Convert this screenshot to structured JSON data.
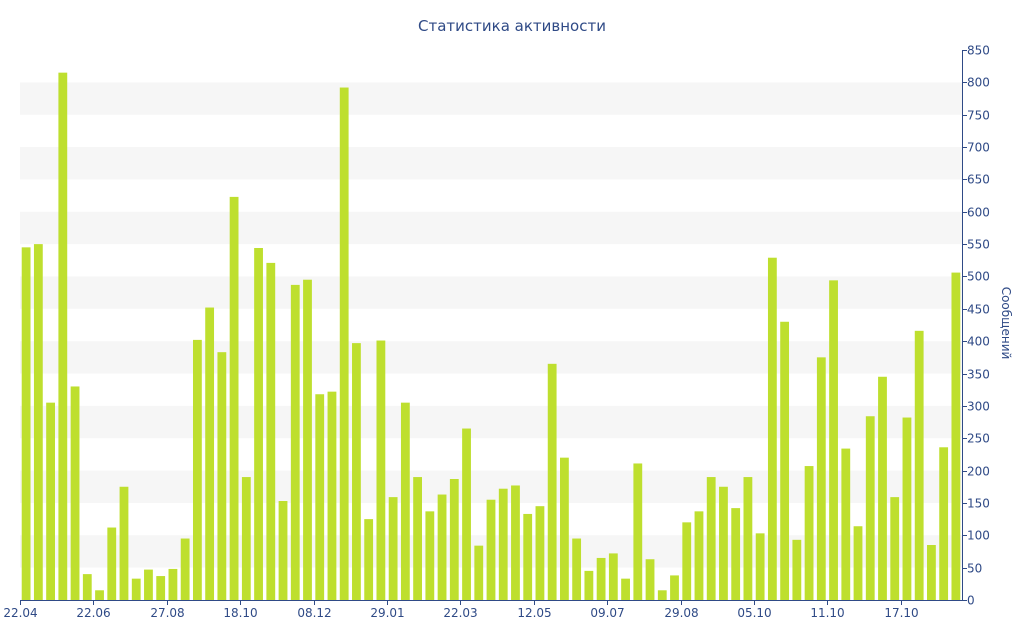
{
  "colors": {
    "bar": "#bedf2e",
    "band": "#f6f6f6",
    "axis": "#2f4a86",
    "text": "#2f4a86"
  },
  "chart_data": {
    "type": "bar",
    "title": "Статистика активности",
    "ylabel": "Сообщений",
    "xlabel": "",
    "ylim": [
      0,
      850
    ],
    "y_ticks": [
      0,
      50,
      100,
      150,
      200,
      250,
      300,
      350,
      400,
      450,
      500,
      550,
      600,
      650,
      700,
      750,
      800,
      850
    ],
    "y_axis_side": "right",
    "grid": "alternating horizontal bands",
    "x_tick_labels": [
      {
        "index": 0,
        "label": "22.04"
      },
      {
        "index": 6,
        "label": "22.06"
      },
      {
        "index": 12,
        "label": "27.08"
      },
      {
        "index": 18,
        "label": "18.10"
      },
      {
        "index": 24,
        "label": "08.12"
      },
      {
        "index": 30,
        "label": "29.01"
      },
      {
        "index": 36,
        "label": "22.03"
      },
      {
        "index": 42,
        "label": "12.05"
      },
      {
        "index": 48,
        "label": "09.07"
      },
      {
        "index": 54,
        "label": "29.08"
      },
      {
        "index": 60,
        "label": "05.10"
      },
      {
        "index": 66,
        "label": "11.10"
      },
      {
        "index": 72,
        "label": "17.10"
      }
    ],
    "values": [
      545,
      550,
      305,
      815,
      330,
      40,
      15,
      112,
      175,
      33,
      47,
      37,
      48,
      95,
      402,
      452,
      383,
      623,
      190,
      544,
      521,
      153,
      487,
      495,
      318,
      322,
      792,
      397,
      125,
      401,
      159,
      305,
      190,
      137,
      163,
      187,
      265,
      84,
      155,
      172,
      177,
      133,
      145,
      365,
      220,
      95,
      45,
      65,
      72,
      33,
      211,
      63,
      15,
      38,
      120,
      137,
      190,
      175,
      142,
      190,
      103,
      529,
      430,
      93,
      207,
      375,
      494,
      234,
      114,
      284,
      345,
      159,
      282,
      416,
      85,
      236,
      506
    ]
  }
}
